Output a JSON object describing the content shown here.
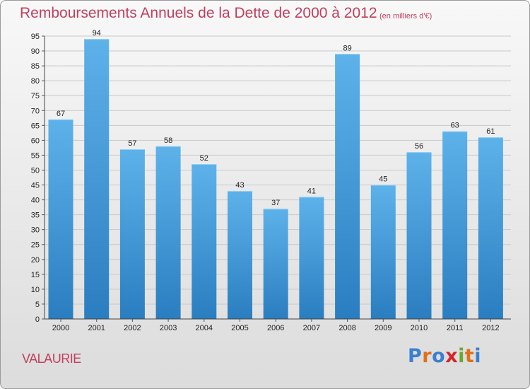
{
  "chart_data": {
    "type": "bar",
    "title": "Remboursements Annuels de la Dette de 2000 à 2012",
    "unit_note": "(en milliers d'€)",
    "categories": [
      "2000",
      "2001",
      "2002",
      "2003",
      "2004",
      "2005",
      "2006",
      "2007",
      "2008",
      "2009",
      "2010",
      "2011",
      "2012"
    ],
    "values": [
      67,
      94,
      57,
      58,
      52,
      43,
      37,
      41,
      89,
      45,
      56,
      63,
      61
    ],
    "ylim": [
      0,
      95
    ],
    "yticks": [
      0,
      5,
      10,
      15,
      20,
      25,
      30,
      35,
      40,
      45,
      50,
      55,
      60,
      65,
      70,
      75,
      80,
      85,
      90,
      95
    ],
    "grid": true,
    "xlabel": "",
    "ylabel": "",
    "bar_color": "#3a8fd4"
  },
  "footer": {
    "commune": "VALAURIE",
    "brand": "Proxiti",
    "brand_colors": [
      "#3a7fd0",
      "#e0701a",
      "#3a7fd0",
      "#d6252a",
      "#6aa832",
      "#e0701a",
      "#3a7fd0"
    ]
  }
}
